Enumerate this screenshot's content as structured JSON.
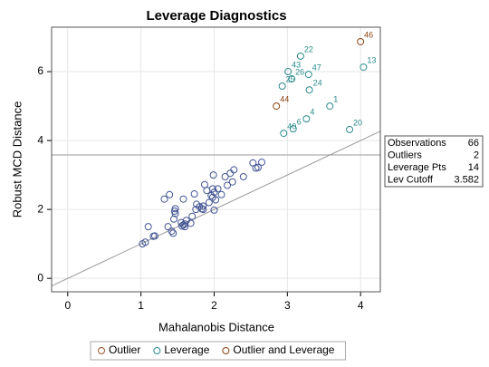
{
  "chart_data": {
    "type": "scatter",
    "title": "Leverage Diagnostics",
    "x_label": "Mahalanobis Distance",
    "y_label": "Robust MCD Distance",
    "xlim": [
      -0.22,
      4.27
    ],
    "ylim": [
      -0.39,
      7.29
    ],
    "xticks": [
      0,
      1,
      2,
      3,
      4
    ],
    "yticks": [
      0,
      2,
      4,
      6
    ],
    "grid": true,
    "hline": 3.582,
    "diagonal": true,
    "legend": "bottom",
    "series": [
      {
        "name": "Outlier",
        "color": "#a0522d",
        "x": [],
        "y": [],
        "labels": []
      },
      {
        "name": "Leverage",
        "color": "#2a8a8a",
        "x": [
          3.18,
          4.04,
          3.01,
          3.29,
          3.06,
          2.93,
          3.3,
          3.58,
          3.26,
          3.08,
          2.95,
          3.85
        ],
        "y": [
          6.45,
          6.13,
          6.0,
          5.92,
          5.79,
          5.58,
          5.47,
          5.0,
          4.63,
          4.34,
          4.21,
          4.32
        ],
        "labels": [
          22,
          13,
          43,
          47,
          26,
          25,
          24,
          1,
          4,
          6,
          40,
          20
        ]
      },
      {
        "name": "Outlier and Leverage",
        "color": "#8b4513",
        "x": [
          4.0,
          2.85
        ],
        "y": [
          6.87,
          5.0
        ],
        "labels": [
          46,
          44
        ]
      }
    ],
    "other_points": {
      "color": "#445694",
      "x": [
        1.02,
        1.06,
        1.1,
        1.17,
        1.19,
        1.32,
        1.39,
        1.37,
        1.42,
        1.45,
        1.46,
        1.47,
        1.44,
        1.55,
        1.56,
        1.58,
        1.6,
        1.62,
        1.58,
        1.68,
        1.7,
        1.73,
        1.76,
        1.8,
        1.83,
        1.85,
        1.87,
        1.9,
        1.93,
        1.96,
        1.98,
        2.0,
        1.99,
        2.02,
        2.05,
        2.1,
        2.15,
        2.18,
        2.22,
        2.25,
        2.27,
        2.4,
        2.53,
        2.57,
        2.6,
        2.65,
        1.6,
        1.98,
        1.85,
        1.47,
        2.0,
        1.75
      ],
      "y": [
        1.0,
        1.05,
        1.5,
        1.22,
        1.23,
        2.3,
        2.43,
        1.5,
        1.37,
        1.72,
        1.95,
        2.02,
        1.31,
        1.62,
        1.52,
        1.55,
        1.5,
        1.68,
        2.3,
        1.6,
        1.8,
        2.45,
        2.15,
        2.08,
        2.02,
        2.1,
        2.72,
        2.55,
        2.2,
        2.4,
        2.35,
        1.98,
        3.0,
        2.28,
        2.6,
        2.43,
        2.95,
        2.7,
        3.05,
        2.8,
        3.15,
        2.95,
        3.35,
        3.2,
        3.22,
        3.37,
        1.58,
        2.6,
        2.0,
        1.88,
        2.5,
        2.0
      ]
    },
    "inset": [
      {
        "label": "Observations",
        "value": 66
      },
      {
        "label": "Outliers",
        "value": 2
      },
      {
        "label": "Leverage Pts",
        "value": 14
      },
      {
        "label": "Lev Cutoff",
        "value": 3.582
      }
    ]
  }
}
